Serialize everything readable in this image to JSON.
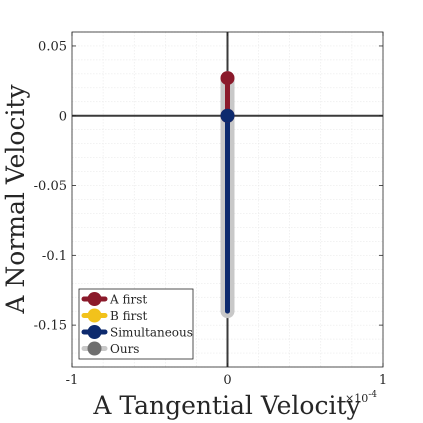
{
  "chart_data": {
    "type": "line",
    "xlabel": "A Tangential Velocity",
    "ylabel": "A Normal Velocity",
    "x_exponent_label": "×10",
    "x_exponent_power": "-4",
    "xlim": [
      -1,
      1
    ],
    "ylim": [
      -0.18,
      0.06
    ],
    "x_ticks": [
      -1,
      0,
      1
    ],
    "x_tick_labels": [
      "-1",
      "0",
      "1"
    ],
    "y_ticks": [
      0.05,
      0,
      -0.05,
      -0.1,
      -0.15
    ],
    "y_tick_labels": [
      "0.05",
      "0",
      "-0.05",
      "-0.1",
      "-0.15"
    ],
    "grid": true,
    "legend_position": "bottom-left",
    "series": [
      {
        "name": "A first",
        "color": "#8b1a2b",
        "x": [
          0,
          0
        ],
        "y": [
          0,
          0.027
        ]
      },
      {
        "name": "B first",
        "color": "#f2c21b",
        "x": [
          0,
          0
        ],
        "y": [
          0,
          0
        ]
      },
      {
        "name": "Simultaneous",
        "color": "#0d2a6e",
        "x": [
          0,
          0
        ],
        "y": [
          0,
          -0.14
        ]
      },
      {
        "name": "Ours",
        "color": "#6e6e6e",
        "x": [
          0,
          0
        ],
        "y": [
          0.027,
          -0.14
        ]
      }
    ]
  }
}
